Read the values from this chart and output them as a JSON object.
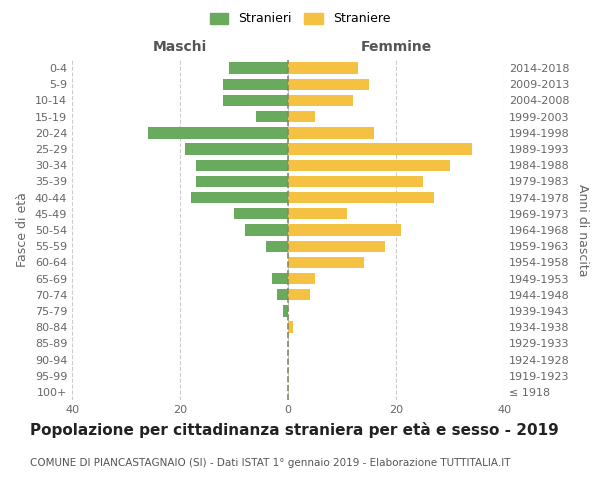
{
  "age_groups": [
    "100+",
    "95-99",
    "90-94",
    "85-89",
    "80-84",
    "75-79",
    "70-74",
    "65-69",
    "60-64",
    "55-59",
    "50-54",
    "45-49",
    "40-44",
    "35-39",
    "30-34",
    "25-29",
    "20-24",
    "15-19",
    "10-14",
    "5-9",
    "0-4"
  ],
  "birth_years": [
    "≤ 1918",
    "1919-1923",
    "1924-1928",
    "1929-1933",
    "1934-1938",
    "1939-1943",
    "1944-1948",
    "1949-1953",
    "1954-1958",
    "1959-1963",
    "1964-1968",
    "1969-1973",
    "1974-1978",
    "1979-1983",
    "1984-1988",
    "1989-1993",
    "1994-1998",
    "1999-2003",
    "2004-2008",
    "2009-2013",
    "2014-2018"
  ],
  "maschi": [
    0,
    0,
    0,
    0,
    0,
    1,
    2,
    3,
    0,
    4,
    8,
    10,
    18,
    17,
    17,
    19,
    26,
    6,
    12,
    12,
    11
  ],
  "femmine": [
    0,
    0,
    0,
    0,
    1,
    0,
    4,
    5,
    14,
    18,
    21,
    11,
    27,
    25,
    30,
    34,
    16,
    5,
    12,
    15,
    13
  ],
  "color_maschi": "#6aaa5e",
  "color_femmine": "#f5c142",
  "title": "Popolazione per cittadinanza straniera per età e sesso - 2019",
  "subtitle": "COMUNE DI PIANCASTAGNAIO (SI) - Dati ISTAT 1° gennaio 2019 - Elaborazione TUTTITALIA.IT",
  "ylabel_left": "Fasce di età",
  "ylabel_right": "Anni di nascita",
  "xlabel_left": "Maschi",
  "xlabel_right": "Femmine",
  "legend_maschi": "Stranieri",
  "legend_femmine": "Straniere",
  "xlim": 40,
  "background_color": "#ffffff",
  "grid_color": "#cccccc",
  "title_fontsize": 11,
  "subtitle_fontsize": 7.5,
  "axis_label_fontsize": 9,
  "tick_fontsize": 8,
  "dashed_line_color": "#888866"
}
